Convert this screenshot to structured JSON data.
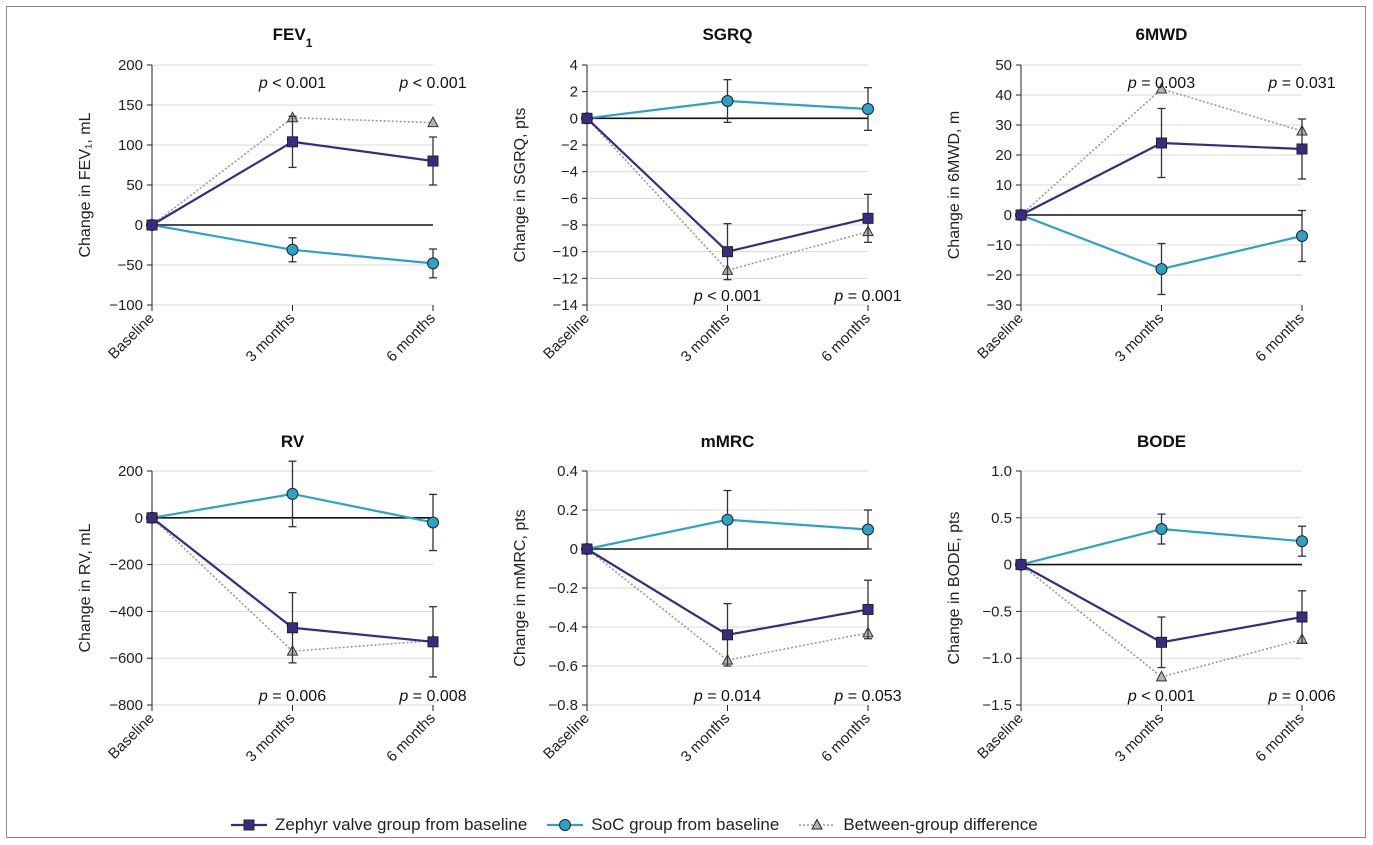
{
  "colors": {
    "zephyr": "#3b2a85",
    "soc": "#2aa3c9",
    "diff": "#9a9a9a",
    "grid": "#d9d9d9",
    "axis": "#222222"
  },
  "legend": [
    {
      "key": "zephyr",
      "label": "Zephyr valve group from baseline",
      "marker": "square",
      "dashed": false
    },
    {
      "key": "soc",
      "label": "SoC group from baseline",
      "marker": "circle",
      "dashed": false
    },
    {
      "key": "diff",
      "label": "Between-group difference",
      "marker": "triangle",
      "dashed": true
    }
  ],
  "chart_data": [
    {
      "type": "line",
      "title_main": "FEV",
      "title_sub": "1",
      "ylabel": "Change in FEV₁, mL",
      "categories": [
        "Baseline",
        "3 months",
        "6 months"
      ],
      "ylim": [
        -100,
        200
      ],
      "yticks": [
        -100,
        -50,
        0,
        50,
        100,
        150,
        200
      ],
      "yticklabels": [
        "−100",
        "−50",
        "0",
        "50",
        "100",
        "150",
        "200"
      ],
      "pvalues": [
        "< 0.001",
        "< 0.001"
      ],
      "pvalue_position": "top",
      "series": [
        {
          "name": "Zephyr valve group from baseline",
          "key": "zephyr",
          "values": [
            0,
            104,
            80
          ],
          "err": [
            0,
            32,
            30
          ]
        },
        {
          "name": "SoC group from baseline",
          "key": "soc",
          "values": [
            0,
            -31,
            -48
          ],
          "err": [
            0,
            15,
            18
          ]
        },
        {
          "name": "Between-group difference",
          "key": "diff",
          "values": [
            0,
            134,
            128
          ],
          "err": [
            0,
            0,
            0
          ]
        }
      ]
    },
    {
      "type": "line",
      "title_main": "SGRQ",
      "title_sub": "",
      "ylabel": "Change in SGRQ, pts",
      "categories": [
        "Baseline",
        "3 months",
        "6 months"
      ],
      "ylim": [
        -14,
        4
      ],
      "yticks": [
        -14,
        -12,
        -10,
        -8,
        -6,
        -4,
        -2,
        0,
        2,
        4
      ],
      "yticklabels": [
        "−14",
        "−12",
        "−10",
        "−8",
        "−6",
        "−4",
        "−2",
        "0",
        "2",
        "4"
      ],
      "pvalues": [
        "< 0.001",
        "= 0.001"
      ],
      "pvalue_position": "bottom",
      "series": [
        {
          "name": "Zephyr valve group from baseline",
          "key": "zephyr",
          "values": [
            0,
            -10.0,
            -7.5
          ],
          "err": [
            0,
            2.1,
            1.8
          ]
        },
        {
          "name": "SoC group from baseline",
          "key": "soc",
          "values": [
            0,
            1.3,
            0.7
          ],
          "err": [
            0,
            1.6,
            1.6
          ]
        },
        {
          "name": "Between-group difference",
          "key": "diff",
          "values": [
            0,
            -11.4,
            -8.5
          ],
          "err": [
            0,
            0,
            0
          ]
        }
      ]
    },
    {
      "type": "line",
      "title_main": "6MWD",
      "title_sub": "",
      "ylabel": "Change in 6MWD, m",
      "categories": [
        "Baseline",
        "3 months",
        "6 months"
      ],
      "ylim": [
        -30,
        50
      ],
      "yticks": [
        -30,
        -20,
        -10,
        0,
        10,
        20,
        30,
        40,
        50
      ],
      "yticklabels": [
        "−30",
        "−20",
        "−10",
        "0",
        "10",
        "20",
        "30",
        "40",
        "50"
      ],
      "pvalues": [
        "= 0.003",
        "= 0.031"
      ],
      "pvalue_position": "top",
      "series": [
        {
          "name": "Zephyr valve group from baseline",
          "key": "zephyr",
          "values": [
            0,
            24,
            22
          ],
          "err": [
            0,
            11.5,
            10
          ]
        },
        {
          "name": "SoC group from baseline",
          "key": "soc",
          "values": [
            0,
            -18,
            -7
          ],
          "err": [
            0,
            8.5,
            8.5
          ]
        },
        {
          "name": "Between-group difference",
          "key": "diff",
          "values": [
            0,
            42,
            28
          ],
          "err": [
            0,
            0,
            0
          ]
        }
      ]
    },
    {
      "type": "line",
      "title_main": "RV",
      "title_sub": "",
      "ylabel": "Change in RV, mL",
      "categories": [
        "Baseline",
        "3 months",
        "6 months"
      ],
      "ylim": [
        -800,
        200
      ],
      "yticks": [
        -800,
        -600,
        -400,
        -200,
        0,
        200
      ],
      "yticklabels": [
        "−800",
        "−600",
        "−400",
        "−200",
        "0",
        "200"
      ],
      "pvalues": [
        "= 0.006",
        "= 0.008"
      ],
      "pvalue_position": "bottom",
      "series": [
        {
          "name": "Zephyr valve group from baseline",
          "key": "zephyr",
          "values": [
            0,
            -470,
            -530
          ],
          "err": [
            0,
            150,
            150
          ]
        },
        {
          "name": "SoC group from baseline",
          "key": "soc",
          "values": [
            0,
            102,
            -20
          ],
          "err": [
            0,
            140,
            120
          ]
        },
        {
          "name": "Between-group difference",
          "key": "diff",
          "values": [
            0,
            -570,
            -525
          ],
          "err": [
            0,
            0,
            0
          ]
        }
      ]
    },
    {
      "type": "line",
      "title_main": "mMRC",
      "title_sub": "",
      "ylabel": "Change in mMRC, pts",
      "categories": [
        "Baseline",
        "3 months",
        "6 months"
      ],
      "ylim": [
        -0.8,
        0.4
      ],
      "yticks": [
        -0.8,
        -0.6,
        -0.4,
        -0.2,
        0,
        0.2,
        0.4
      ],
      "yticklabels": [
        "−0.8",
        "−0.6",
        "−0.4",
        "−0.2",
        "0",
        "0.2",
        "0.4"
      ],
      "pvalues": [
        "= 0.014",
        "= 0.053"
      ],
      "pvalue_position": "bottom",
      "series": [
        {
          "name": "Zephyr valve group from baseline",
          "key": "zephyr",
          "values": [
            0,
            -0.44,
            -0.31
          ],
          "err": [
            0,
            0.16,
            0.15
          ]
        },
        {
          "name": "SoC group from baseline",
          "key": "soc",
          "values": [
            0,
            0.15,
            0.1
          ],
          "err": [
            0,
            0.15,
            0.1
          ]
        },
        {
          "name": "Between-group difference",
          "key": "diff",
          "values": [
            0,
            -0.57,
            -0.43
          ],
          "err": [
            0,
            0,
            0
          ]
        }
      ]
    },
    {
      "type": "line",
      "title_main": "BODE",
      "title_sub": "",
      "ylabel": "Change in BODE, pts",
      "categories": [
        "Baseline",
        "3 months",
        "6 months"
      ],
      "ylim": [
        -1.5,
        1.0
      ],
      "yticks": [
        -1.5,
        -1.0,
        -0.5,
        0,
        0.5,
        1.0
      ],
      "yticklabels": [
        "−1.5",
        "−1.0",
        "−0.5",
        "0",
        "0.5",
        "1.0"
      ],
      "pvalues": [
        "< 0.001",
        "= 0.006"
      ],
      "pvalue_position": "bottom",
      "series": [
        {
          "name": "Zephyr valve group from baseline",
          "key": "zephyr",
          "values": [
            0,
            -0.83,
            -0.56
          ],
          "err": [
            0,
            0.27,
            0.28
          ]
        },
        {
          "name": "SoC group from baseline",
          "key": "soc",
          "values": [
            0,
            0.38,
            0.25
          ],
          "err": [
            0,
            0.16,
            0.16
          ]
        },
        {
          "name": "Between-group difference",
          "key": "diff",
          "values": [
            0,
            -1.2,
            -0.8
          ],
          "err": [
            0,
            0,
            0
          ]
        }
      ]
    }
  ]
}
